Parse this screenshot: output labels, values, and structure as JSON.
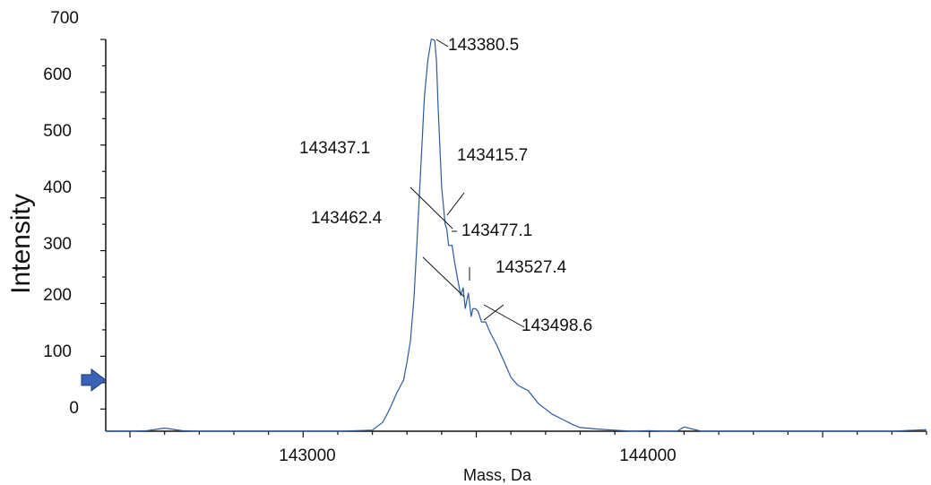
{
  "chart_data": {
    "type": "line",
    "title": "",
    "xlabel": "Mass, Da",
    "ylabel": "Intensity",
    "xlim": [
      142430,
      144800
    ],
    "ylim": [
      -42,
      700
    ],
    "x_ticks": [
      "143000",
      "144000"
    ],
    "y_ticks": [
      "700",
      "600",
      "500",
      "400",
      "300",
      "200",
      "100",
      "0"
    ],
    "grid": false,
    "legend": "none",
    "line_color": "#2b5aa0",
    "marker": "blue-arrow-marker",
    "marker_level": 55,
    "series": [
      {
        "x": [
          142430,
          142500,
          142550,
          142600,
          142650,
          142700,
          142800,
          142900,
          143000,
          143100,
          143200,
          143230,
          143250,
          143270,
          143290,
          143300,
          143310,
          143320,
          143330,
          143340,
          143350,
          143360,
          143370,
          143375,
          143380,
          143385,
          143390,
          143400,
          143410,
          143415,
          143420,
          143430,
          143437,
          143445,
          143455,
          143462,
          143468,
          143477,
          143485,
          143490,
          143498,
          143505,
          143515,
          143527,
          143540,
          143560,
          143580,
          143600,
          143620,
          143650,
          143680,
          143700,
          143720,
          143750,
          143780,
          143800,
          143850,
          143900,
          143950,
          144000,
          144050,
          144080,
          144100,
          144150,
          144200,
          144300,
          144400,
          144500,
          144600,
          144700,
          144800
        ],
        "y": [
          -42,
          -42,
          -41,
          -36,
          -41,
          -42,
          -42,
          -42,
          -42,
          -42,
          -40,
          -25,
          0,
          30,
          55,
          90,
          130,
          210,
          330,
          460,
          590,
          660,
          700,
          700,
          698,
          660,
          570,
          420,
          350,
          340,
          310,
          310,
          280,
          250,
          215,
          230,
          190,
          220,
          175,
          190,
          190,
          185,
          165,
          165,
          145,
          120,
          90,
          60,
          45,
          35,
          10,
          0,
          -10,
          -20,
          -30,
          -35,
          -38,
          -40,
          -42,
          -41,
          -42,
          -42,
          -34,
          -42,
          -42,
          -42,
          -42,
          -42,
          -42,
          -42,
          -39
        ]
      }
    ],
    "annotations": [
      {
        "label": "143380.5",
        "x": 143380.5,
        "y": 700
      },
      {
        "label": "143437.1",
        "x": 143437.1,
        "y": 322
      },
      {
        "label": "143415.7",
        "x": 143415.7,
        "y": 338
      },
      {
        "label": "143462.4",
        "x": 143462.4,
        "y": 230
      },
      {
        "label": "143477.1",
        "x": 143477.1,
        "y": 240
      },
      {
        "label": "143527.4",
        "x": 143527.4,
        "y": 215
      },
      {
        "label": "143498.6",
        "x": 143498.6,
        "y": 190
      }
    ]
  }
}
